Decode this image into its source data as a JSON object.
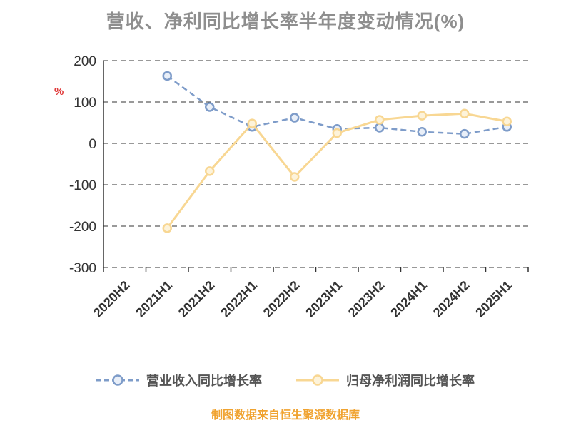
{
  "title": "营收、净利同比增长率半年度变动情况(%)",
  "footer": "制图数据来自恒生聚源数据库",
  "colors": {
    "title_gray": "#8e8e8e",
    "footer_orange": "#f0a330",
    "axis_dark": "#333333",
    "ylabel_red": "#e03a3a",
    "revenue_blue": "#7e9cc9",
    "revenue_blue_fill": "#e9eff8",
    "netprofit_yellow": "#f8d793",
    "netprofit_yellow_fill": "#fdf3da"
  },
  "chart_data": {
    "type": "line",
    "title": "营收、净利同比增长率半年度变动情况(%)",
    "categories": [
      "2020H2",
      "2021H1",
      "2021H2",
      "2022H1",
      "2022H2",
      "2023H1",
      "2023H2",
      "2024H1",
      "2024H2",
      "2025H1"
    ],
    "series": [
      {
        "name": "营业收入同比增长率",
        "color": "#7e9cc9",
        "fill": "#e9eff8",
        "dash": "8 5",
        "values": [
          null,
          163,
          88,
          40,
          62,
          35,
          38,
          28,
          23,
          40
        ]
      },
      {
        "name": "归母净利润同比增长率",
        "color": "#f8d793",
        "fill": "#fdf3da",
        "dash": "",
        "values": [
          null,
          -205,
          -67,
          48,
          -81,
          25,
          57,
          67,
          72,
          53
        ]
      }
    ],
    "xlabel": "",
    "ylabel": "%",
    "ylim": [
      -300,
      200
    ],
    "yticks": [
      200,
      100,
      0,
      -100,
      -200,
      -300
    ],
    "grid": "dashed-horizontal",
    "legend_position": "bottom",
    "source_note": "制图数据来自恒生聚源数据库"
  }
}
